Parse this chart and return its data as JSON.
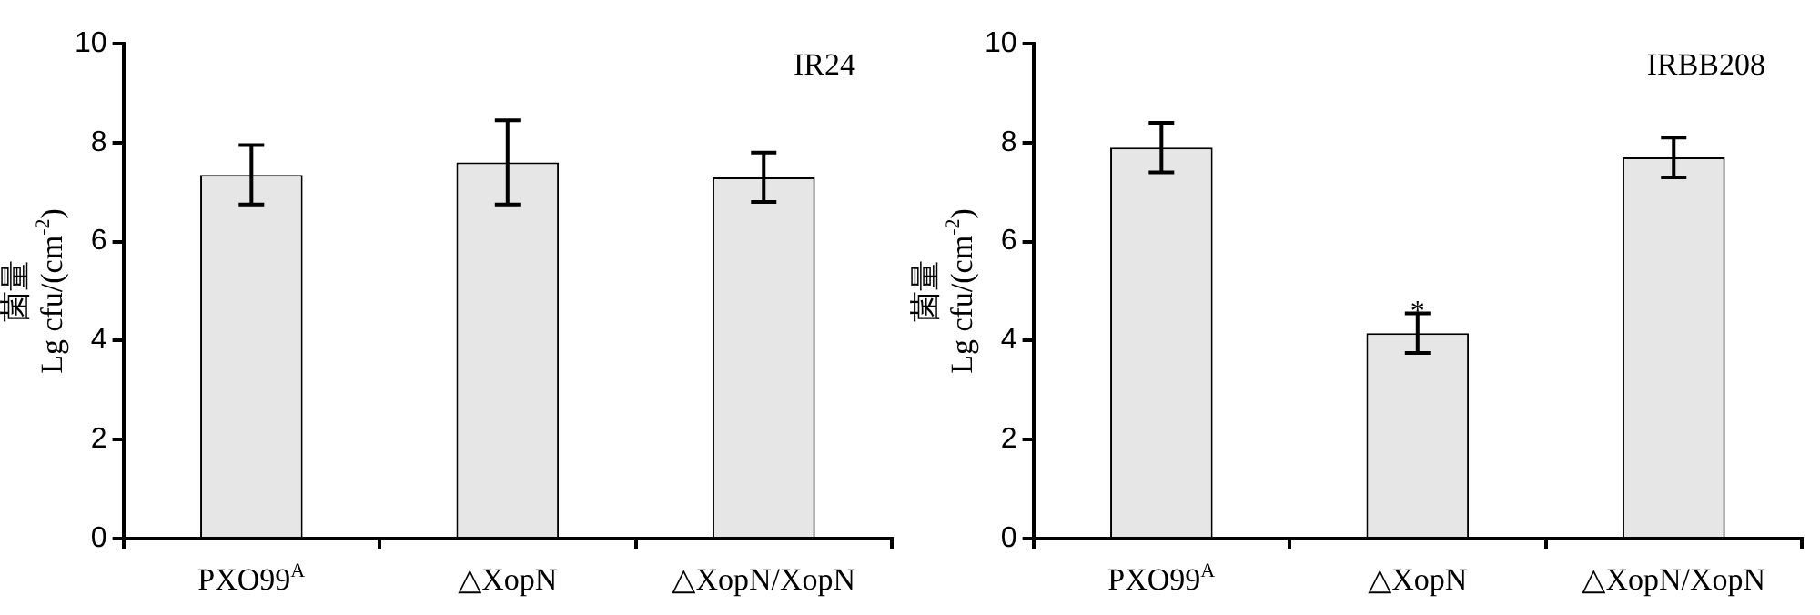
{
  "chart_data": [
    {
      "type": "bar",
      "title": "IR24",
      "ylabel": "菌量\nLg cfu/(cm$^{-2}$)",
      "categories": [
        "PXO99$^{A}$",
        "△XopN",
        "△XopN/XopN"
      ],
      "values": [
        7.35,
        7.6,
        7.3
      ],
      "errors": [
        0.6,
        0.85,
        0.5
      ],
      "color": "#e6e6e6",
      "ylim": [
        0,
        10
      ],
      "yticks": [
        0,
        2,
        4,
        6,
        8,
        10
      ]
    },
    {
      "type": "bar",
      "title": "IRBB208",
      "ylabel": "菌量\nLg cfu/(cm$^{-2}$)",
      "categories": [
        "PXO99$^{A}$",
        "△XopN",
        "△XopN/XopN"
      ],
      "values": [
        7.9,
        4.15,
        7.7
      ],
      "errors": [
        0.5,
        0.4,
        0.4
      ],
      "color": "#e6e6e6",
      "ylim": [
        0,
        10
      ],
      "yticks": [
        0,
        2,
        4,
        6,
        8,
        10
      ],
      "annotations": [
        {
          "text": "*",
          "x": "△XopN",
          "y": 4.7
        }
      ]
    }
  ]
}
